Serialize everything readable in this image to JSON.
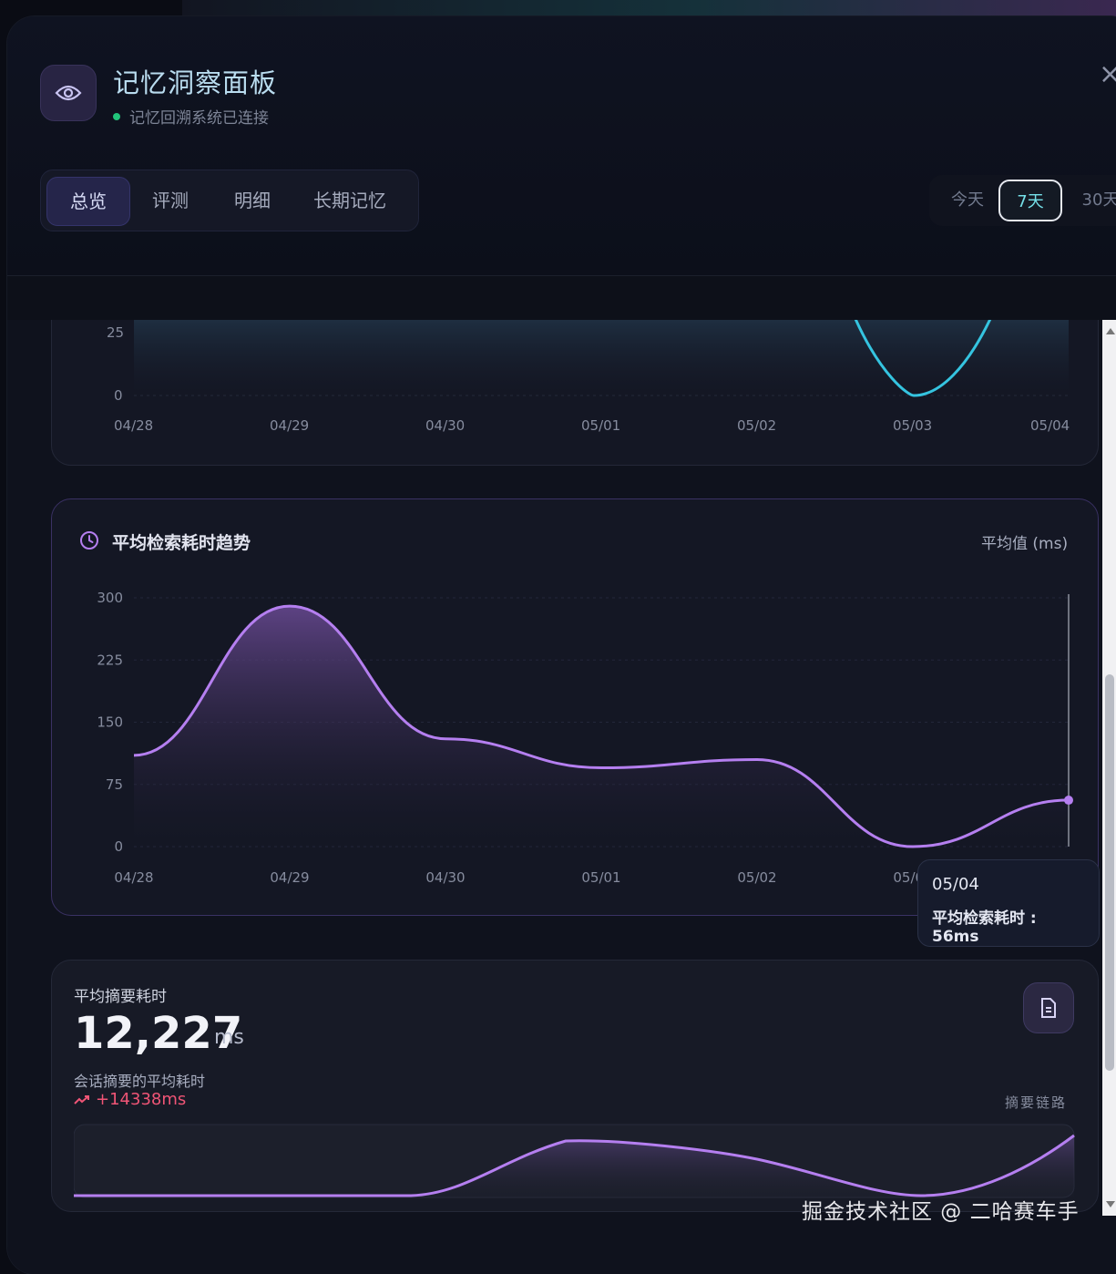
{
  "header": {
    "title": "记忆洞察面板",
    "status": "记忆回溯系统已连接",
    "close_icon": "×"
  },
  "tabs": [
    {
      "label": "总览",
      "active": true
    },
    {
      "label": "评测",
      "active": false
    },
    {
      "label": "明细",
      "active": false
    },
    {
      "label": "长期记忆",
      "active": false
    }
  ],
  "time_range": [
    {
      "label": "今天",
      "active": false
    },
    {
      "label": "7天",
      "active": true
    },
    {
      "label": "30天",
      "active": false
    }
  ],
  "top_chart": {
    "y_ticks": [
      "25",
      "0"
    ],
    "x_ticks": [
      "04/28",
      "04/29",
      "04/30",
      "05/01",
      "05/02",
      "05/03",
      "05/04"
    ],
    "line_color": "#35c4e0"
  },
  "retrieval_chart": {
    "title": "平均检索耗时趋势",
    "unit_label": "平均值 (ms)",
    "tooltip_date": "05/04",
    "tooltip_value": "平均检索耗时 : 56ms",
    "line_color": "#b57ff0"
  },
  "chart_data": [
    {
      "type": "area",
      "title": "平均检索耗时趋势",
      "ylabel": "平均值 (ms)",
      "categories": [
        "04/28",
        "04/29",
        "04/30",
        "05/01",
        "05/02",
        "05/03",
        "05/04"
      ],
      "values": [
        110,
        290,
        130,
        95,
        105,
        0,
        56
      ],
      "y_ticks": [
        0,
        75,
        150,
        225,
        300
      ],
      "ylim": [
        0,
        300
      ],
      "grid": true
    }
  ],
  "summary_card": {
    "label": "平均摘要耗时",
    "value": "12,227",
    "unit": "ms",
    "desc": "会话摘要的平均耗时",
    "trend": "+14338ms",
    "chain_label": "摘要链路"
  },
  "watermark": "掘金技术社区 @ 二哈赛车手"
}
